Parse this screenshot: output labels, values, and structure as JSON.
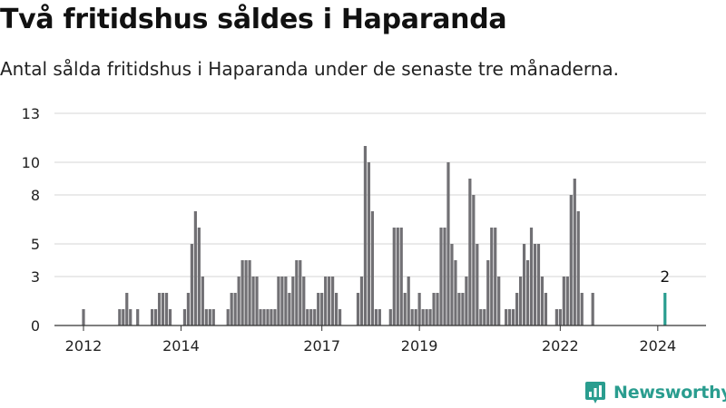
{
  "header": {
    "title": "Två fritidshus såldes i Haparanda",
    "subtitle": "Antal sålda fritidshus i Haparanda under de senaste tre månaderna."
  },
  "chart_data": {
    "type": "bar",
    "title": "Två fritidshus såldes i Haparanda",
    "subtitle": "Antal sålda fritidshus i Haparanda under de senaste tre månaderna.",
    "xlabel": "",
    "ylabel": "",
    "ylim": [
      0,
      13
    ],
    "yticks": [
      0,
      3,
      5,
      8,
      10,
      13
    ],
    "grid": true,
    "x_start": "2012-01",
    "x_ticks": [
      {
        "index": 0,
        "label": "2012"
      },
      {
        "index": 27,
        "label": "2014"
      },
      {
        "index": 66,
        "label": "2017"
      },
      {
        "index": 93,
        "label": "2019"
      },
      {
        "index": 132,
        "label": "2022"
      },
      {
        "index": 159,
        "label": "2024"
      }
    ],
    "series": [
      {
        "name": "Antal sålda fritidshus",
        "color": "#717074",
        "values": [
          1,
          0,
          0,
          0,
          0,
          0,
          0,
          0,
          0,
          0,
          1,
          1,
          2,
          1,
          0,
          1,
          0,
          0,
          0,
          1,
          1,
          2,
          2,
          2,
          1,
          0,
          0,
          0,
          1,
          2,
          5,
          7,
          6,
          3,
          1,
          1,
          1,
          0,
          0,
          0,
          1,
          2,
          2,
          3,
          4,
          4,
          4,
          3,
          3,
          1,
          1,
          1,
          1,
          1,
          3,
          3,
          3,
          2,
          3,
          4,
          4,
          3,
          1,
          1,
          1,
          2,
          2,
          3,
          3,
          3,
          2,
          1,
          0,
          0,
          0,
          0,
          2,
          3,
          11,
          10,
          7,
          1,
          1,
          0,
          0,
          1,
          6,
          6,
          6,
          2,
          3,
          1,
          1,
          2,
          1,
          1,
          1,
          2,
          2,
          6,
          6,
          10,
          5,
          4,
          2,
          2,
          3,
          9,
          8,
          5,
          1,
          1,
          4,
          6,
          6,
          3,
          0,
          1,
          1,
          1,
          2,
          3,
          5,
          4,
          6,
          5,
          5,
          3,
          2,
          0,
          0,
          1,
          1,
          3,
          3,
          8,
          9,
          7,
          2,
          0,
          0,
          2
        ]
      }
    ],
    "highlight": {
      "index": 161,
      "value": 2,
      "label": "2",
      "color": "#2a9d8f"
    }
  },
  "brand": {
    "name": "Newsworthy",
    "color": "#2a9d8f",
    "icon": "bar-chart-logo-icon"
  }
}
